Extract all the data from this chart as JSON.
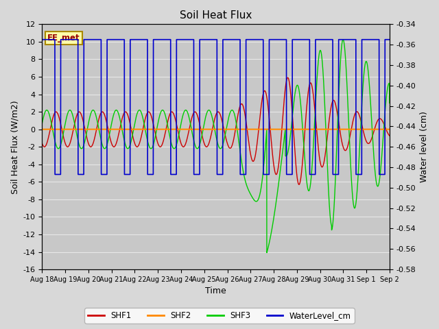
{
  "title": "Soil Heat Flux",
  "ylabel_left": "Soil Heat Flux (W/m2)",
  "ylabel_right": "Water level (cm)",
  "xlabel": "Time",
  "ylim_left": [
    -16,
    12
  ],
  "ylim_right": [
    -0.58,
    -0.34
  ],
  "background_color": "#d8d8d8",
  "plot_bg_color": "#c8c8c8",
  "grid_color": "#e8e8e8",
  "label_box_text": "EE_met",
  "colors": {
    "SHF1": "#cc0000",
    "SHF2": "#ff8800",
    "SHF3": "#00cc00",
    "WaterLevel_cm": "#0000cc"
  },
  "x_labels": [
    "Aug 18",
    "Aug 19",
    "Aug 20",
    "Aug 21",
    "Aug 22",
    "Aug 23",
    "Aug 24",
    "Aug 25",
    "Aug 26",
    "Aug 27",
    "Aug 28",
    "Aug 29",
    "Aug 30",
    "Aug 31",
    "Sep 1",
    "Sep 2"
  ],
  "right_yticks": [
    -0.34,
    -0.36,
    -0.38,
    -0.4,
    -0.42,
    -0.44,
    -0.46,
    -0.48,
    -0.5,
    -0.52,
    -0.54,
    -0.56,
    -0.58
  ],
  "left_yticks": [
    -16,
    -14,
    -12,
    -10,
    -8,
    -6,
    -4,
    -2,
    0,
    2,
    4,
    6,
    8,
    10,
    12
  ]
}
